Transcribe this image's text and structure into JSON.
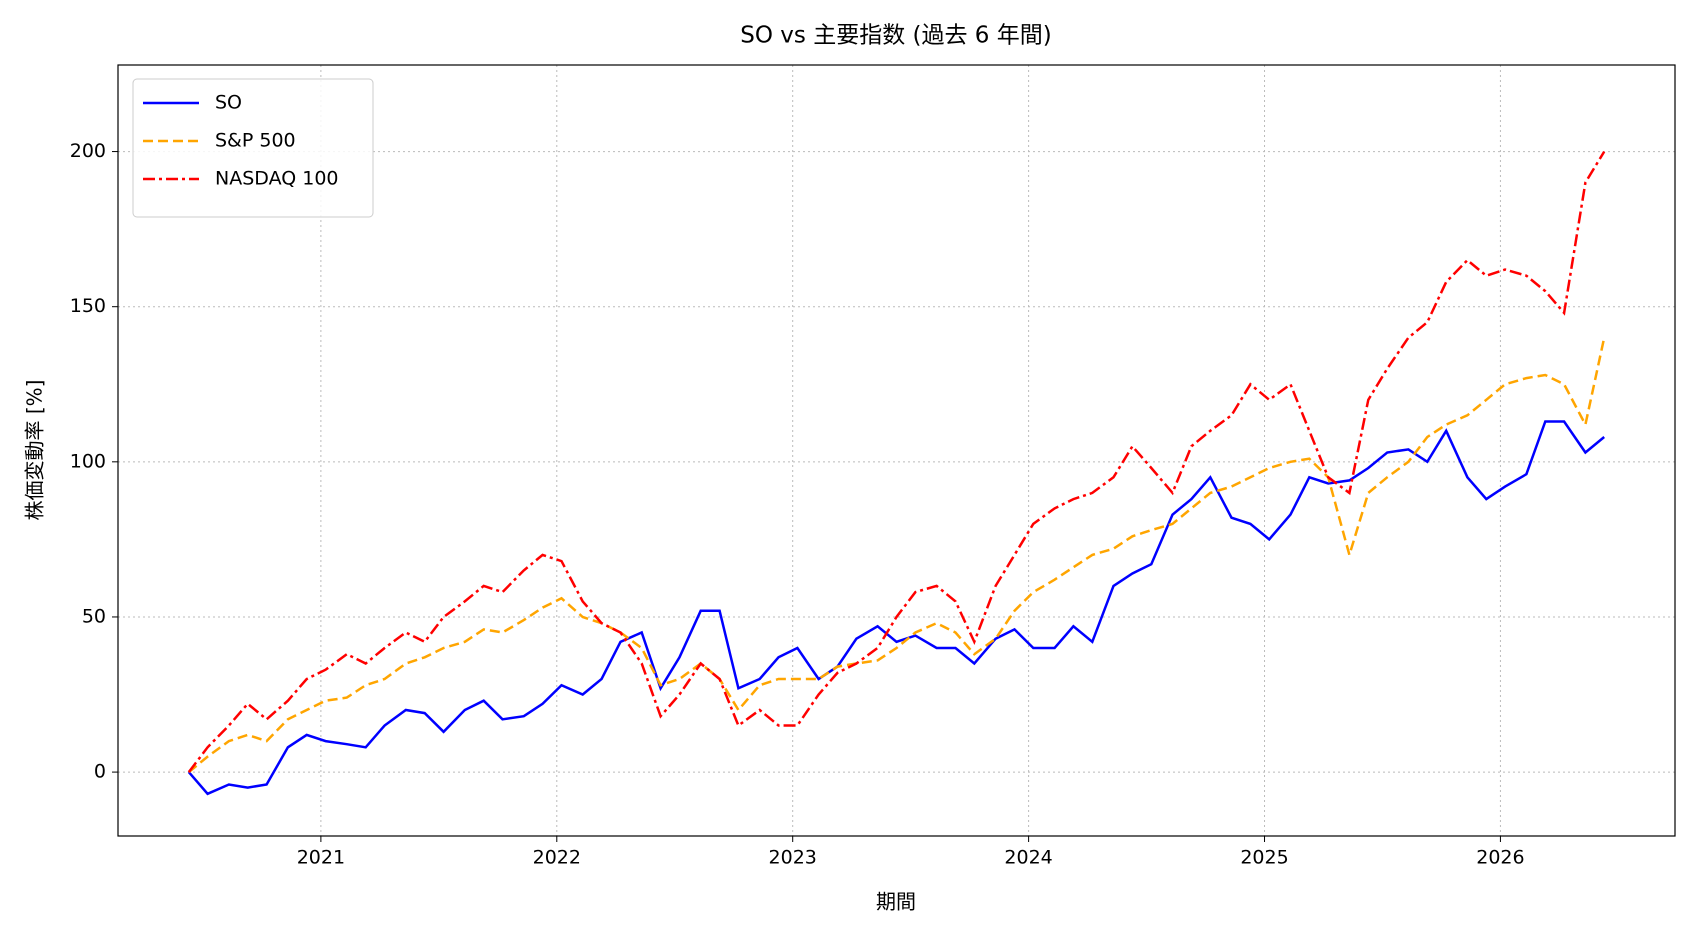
{
  "chart_data": {
    "type": "line",
    "title": "SO vs 主要指数 (過去 6 年間)",
    "xlabel": "期間",
    "ylabel": "株価変動率 [%]",
    "x": [
      2020.44,
      2020.52,
      2020.61,
      2020.69,
      2020.77,
      2020.86,
      2020.94,
      2021.02,
      2021.11,
      2021.19,
      2021.27,
      2021.36,
      2021.44,
      2021.52,
      2021.61,
      2021.69,
      2021.77,
      2021.86,
      2021.94,
      2022.02,
      2022.11,
      2022.19,
      2022.27,
      2022.36,
      2022.44,
      2022.52,
      2022.61,
      2022.69,
      2022.77,
      2022.86,
      2022.94,
      2023.02,
      2023.11,
      2023.19,
      2023.27,
      2023.36,
      2023.44,
      2023.52,
      2023.61,
      2023.69,
      2023.77,
      2023.86,
      2023.94,
      2024.02,
      2024.11,
      2024.19,
      2024.27,
      2024.36,
      2024.44,
      2024.52,
      2024.61,
      2024.69,
      2024.77,
      2024.86,
      2024.94,
      2025.02,
      2025.11,
      2025.19,
      2025.27,
      2025.36,
      2025.44,
      2025.52,
      2025.61,
      2025.69,
      2025.77,
      2025.86,
      2025.94,
      2026.02,
      2026.11,
      2026.19,
      2026.27,
      2026.36,
      2026.44
    ],
    "series": [
      {
        "name": "SO",
        "color": "#0000ff",
        "linestyle": "solid",
        "values": [
          0,
          -7,
          -4,
          -5,
          -4,
          8,
          12,
          10,
          9,
          8,
          15,
          20,
          19,
          13,
          20,
          23,
          17,
          18,
          22,
          28,
          25,
          30,
          42,
          45,
          27,
          37,
          52,
          52,
          27,
          30,
          37,
          40,
          30,
          34,
          43,
          47,
          42,
          44,
          40,
          40,
          35,
          43,
          46,
          40,
          40,
          47,
          42,
          60,
          64,
          67,
          83,
          88,
          95,
          82,
          80,
          75,
          83,
          95,
          93,
          94,
          98,
          103,
          104,
          100,
          110,
          95,
          88,
          92,
          96,
          113,
          113,
          103,
          108
        ]
      },
      {
        "name": "S&P 500",
        "color": "#ffa500",
        "linestyle": "dashed",
        "values": [
          0,
          5,
          10,
          12,
          10,
          17,
          20,
          23,
          24,
          28,
          30,
          35,
          37,
          40,
          42,
          46,
          45,
          49,
          53,
          56,
          50,
          48,
          45,
          40,
          28,
          30,
          35,
          30,
          20,
          28,
          30,
          30,
          30,
          34,
          35,
          36,
          40,
          45,
          48,
          45,
          38,
          43,
          52,
          58,
          62,
          66,
          70,
          72,
          76,
          78,
          80,
          85,
          90,
          92,
          95,
          98,
          100,
          101,
          95,
          70,
          90,
          95,
          100,
          108,
          112,
          115,
          120,
          125,
          127,
          128,
          125,
          112,
          140
        ]
      },
      {
        "name": "NASDAQ 100",
        "color": "#ff0000",
        "linestyle": "dashdot",
        "values": [
          0,
          8,
          15,
          22,
          17,
          23,
          30,
          33,
          38,
          35,
          40,
          45,
          42,
          50,
          55,
          60,
          58,
          65,
          70,
          68,
          55,
          48,
          45,
          35,
          18,
          25,
          35,
          30,
          15,
          20,
          15,
          15,
          25,
          32,
          35,
          40,
          50,
          58,
          60,
          55,
          42,
          60,
          70,
          80,
          85,
          88,
          90,
          95,
          105,
          98,
          90,
          105,
          110,
          115,
          125,
          120,
          125,
          110,
          95,
          90,
          120,
          130,
          140,
          145,
          158,
          165,
          160,
          162,
          160,
          155,
          148,
          190,
          200
        ]
      }
    ],
    "xlim": [
      2020.14,
      2026.74
    ],
    "xticks": [
      2021,
      2022,
      2023,
      2024,
      2025,
      2026
    ],
    "ylim": [
      -20.6,
      227.9
    ],
    "yticks": [
      0,
      50,
      100,
      150,
      200
    ],
    "grid": true,
    "legend": "upper left"
  }
}
